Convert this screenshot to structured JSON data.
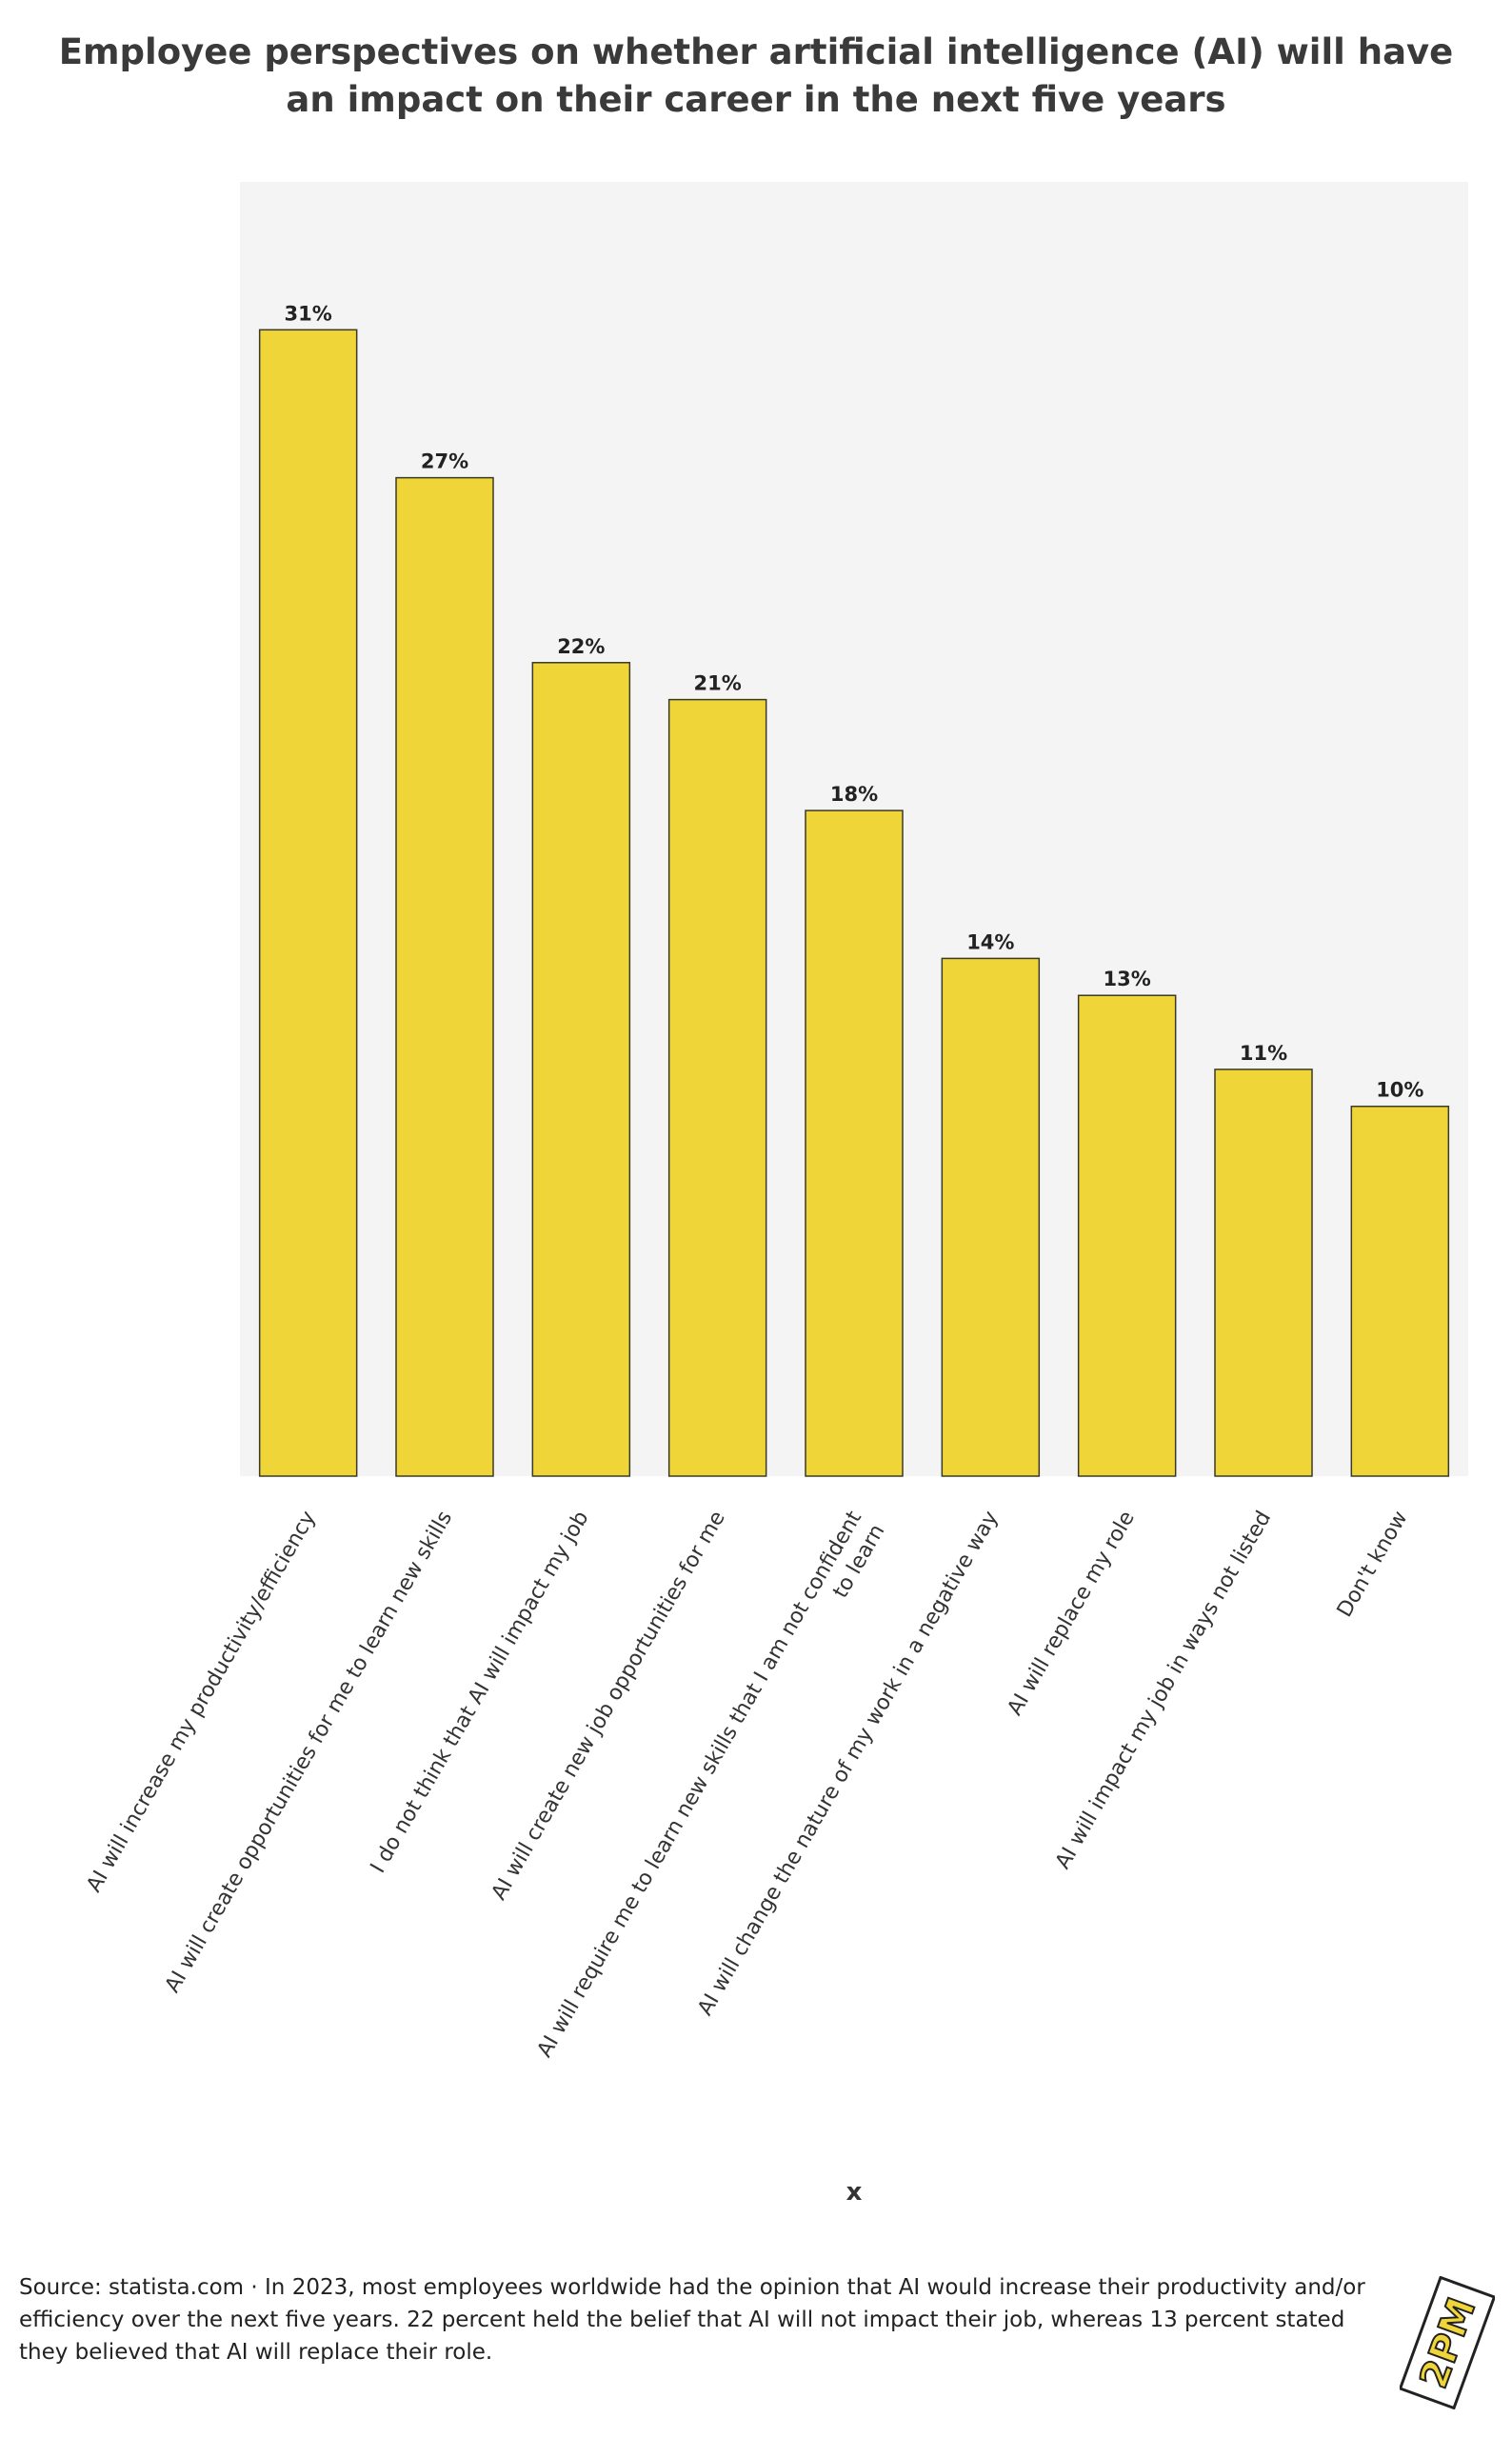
{
  "chart_data": {
    "type": "bar",
    "title": "Employee perspectives on whether artificial intelligence (AI) will have an impact on their career in the next five years",
    "xlabel": "x",
    "ylabel": "",
    "ylim": [
      0,
      35
    ],
    "grid": false,
    "categories": [
      "AI will increase my productivity/efficiency",
      "AI will create opportunities for me to learn new skills",
      "I do not think that AI will impact my job",
      "AI will create new job opportunities for me",
      "AI will require me to learn new skills that I am not confident to learn",
      "AI will change the nature of my work in a negative way",
      "AI will replace my role",
      "AI will impact my job in ways not listed",
      "Don't know"
    ],
    "category_lines": [
      [
        "AI will increase my productivity/efficiency"
      ],
      [
        "AI will create opportunities for me to learn new skills"
      ],
      [
        "I do not think that AI will impact my job"
      ],
      [
        "AI will create new job opportunities for me"
      ],
      [
        "AI will require me to learn new skills that I am not confident",
        "to learn"
      ],
      [
        "AI will change the nature of my work in a negative way"
      ],
      [
        "AI will replace my role"
      ],
      [
        "AI will impact my job in ways not listed"
      ],
      [
        "Don't know"
      ]
    ],
    "values": [
      31,
      27,
      22,
      21,
      18,
      14,
      13,
      11,
      10
    ],
    "value_labels": [
      "31%",
      "27%",
      "22%",
      "21%",
      "18%",
      "14%",
      "13%",
      "11%",
      "10%"
    ],
    "colors": {
      "bar": "#EFD538",
      "bar_stroke": "#3a3a2a",
      "plot_bg": "#F4F4F4"
    }
  },
  "footer": {
    "note": "Source: statista.com · In 2023, most employees worldwide had the opinion that AI would increase their productivity and/or efficiency over the next five years. 22 percent held the belief that AI will not impact their job, whereas 13 percent stated they believed that AI will replace their role.",
    "logo_text": "2PM",
    "logo_color": "#EFD538"
  }
}
